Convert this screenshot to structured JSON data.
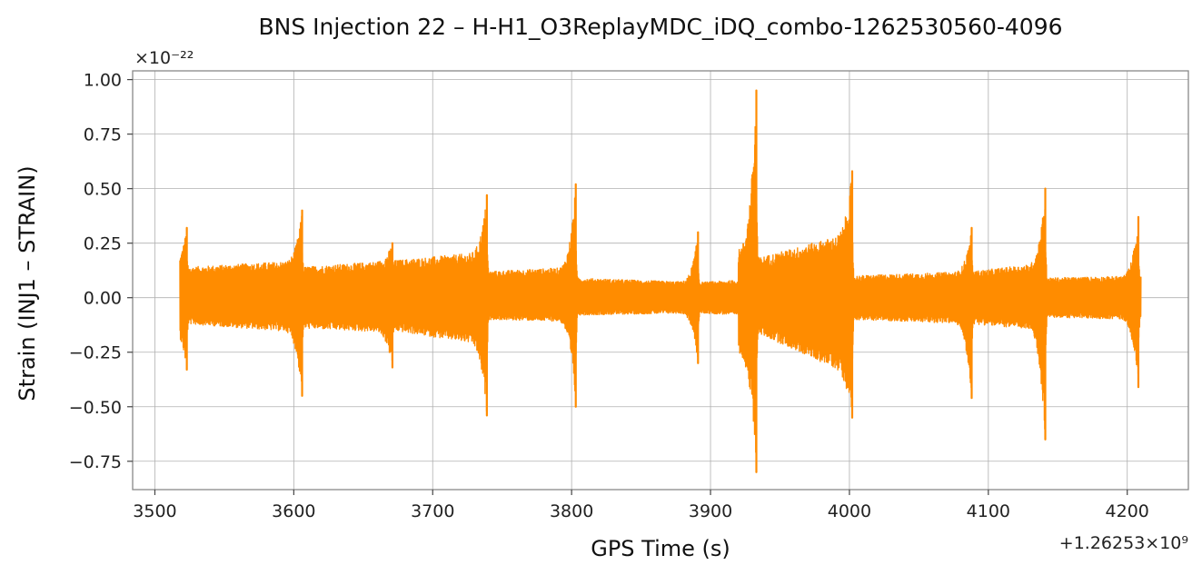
{
  "chart_data": {
    "type": "line",
    "title": "BNS Injection 22 – H-H1_O3ReplayMDC_iDQ_combo-1262530560-4096",
    "xlabel": "GPS Time (s)",
    "ylabel": "Strain (INJ1 – STRAIN)",
    "x_offset_label": "+1.26253×10⁹",
    "y_multiplier_label": "×10⁻²²",
    "xlim": [
      3484,
      4244
    ],
    "ylim": [
      -0.88,
      1.04
    ],
    "x_ticks": [
      3500,
      3600,
      3700,
      3800,
      3900,
      4000,
      4100,
      4200
    ],
    "x_tick_labels": [
      "3500",
      "3600",
      "3700",
      "3800",
      "3900",
      "4000",
      "4100",
      "4200"
    ],
    "y_ticks": [
      -0.75,
      -0.5,
      -0.25,
      0.0,
      0.25,
      0.5,
      0.75,
      1.0
    ],
    "y_tick_labels": [
      "−0.75",
      "−0.50",
      "−0.25",
      "0.00",
      "0.25",
      "0.50",
      "0.75",
      "1.00"
    ],
    "grid": true,
    "legend": "none",
    "series": [
      {
        "color": "#ff8c00",
        "x_range": [
          3518,
          4210
        ],
        "segments": [
          {
            "x": [
              3518,
              3523
            ],
            "upper": [
              0.14,
              0.16
            ],
            "lower": [
              -0.13,
              -0.15
            ]
          },
          {
            "x": [
              3523,
              3606
            ],
            "upper": [
              0.14,
              0.17
            ],
            "lower": [
              -0.12,
              -0.16
            ]
          },
          {
            "x": [
              3606,
              3671
            ],
            "upper": [
              0.14,
              0.17
            ],
            "lower": [
              -0.14,
              -0.16
            ]
          },
          {
            "x": [
              3671,
              3739
            ],
            "upper": [
              0.17,
              0.21
            ],
            "lower": [
              -0.15,
              -0.22
            ]
          },
          {
            "x": [
              3739,
              3803
            ],
            "upper": [
              0.12,
              0.14
            ],
            "lower": [
              -0.1,
              -0.11
            ]
          },
          {
            "x": [
              3803,
              3891
            ],
            "upper": [
              0.09,
              0.07
            ],
            "lower": [
              -0.08,
              -0.07
            ]
          },
          {
            "x": [
              3891,
              3920
            ],
            "upper": [
              0.07,
              0.08
            ],
            "lower": [
              -0.07,
              -0.08
            ]
          },
          {
            "x": [
              3920,
              3933
            ],
            "upper": [
              0.22,
              0.25
            ],
            "lower": [
              -0.25,
              -0.3
            ]
          },
          {
            "x": [
              3933,
              4002
            ],
            "upper": [
              0.18,
              0.3
            ],
            "lower": [
              -0.16,
              -0.36
            ]
          },
          {
            "x": [
              4002,
              4088
            ],
            "upper": [
              0.1,
              0.12
            ],
            "lower": [
              -0.1,
              -0.12
            ]
          },
          {
            "x": [
              4088,
              4141
            ],
            "upper": [
              0.12,
              0.16
            ],
            "lower": [
              -0.12,
              -0.15
            ]
          },
          {
            "x": [
              4141,
              4210
            ],
            "upper": [
              0.09,
              0.1
            ],
            "lower": [
              -0.09,
              -0.1
            ]
          }
        ],
        "glitches": [
          {
            "x": 3523,
            "max": 0.32,
            "min": -0.33
          },
          {
            "x": 3606,
            "max": 0.4,
            "min": -0.45
          },
          {
            "x": 3671,
            "max": 0.25,
            "min": -0.32
          },
          {
            "x": 3739,
            "max": 0.47,
            "min": -0.54
          },
          {
            "x": 3803,
            "max": 0.52,
            "min": -0.5
          },
          {
            "x": 3891,
            "max": 0.3,
            "min": -0.3
          },
          {
            "x": 3933,
            "max": 0.95,
            "min": -0.8
          },
          {
            "x": 4002,
            "max": 0.58,
            "min": -0.55
          },
          {
            "x": 4088,
            "max": 0.32,
            "min": -0.46
          },
          {
            "x": 4141,
            "max": 0.5,
            "min": -0.65
          },
          {
            "x": 4208,
            "max": 0.37,
            "min": -0.41
          }
        ]
      }
    ]
  }
}
